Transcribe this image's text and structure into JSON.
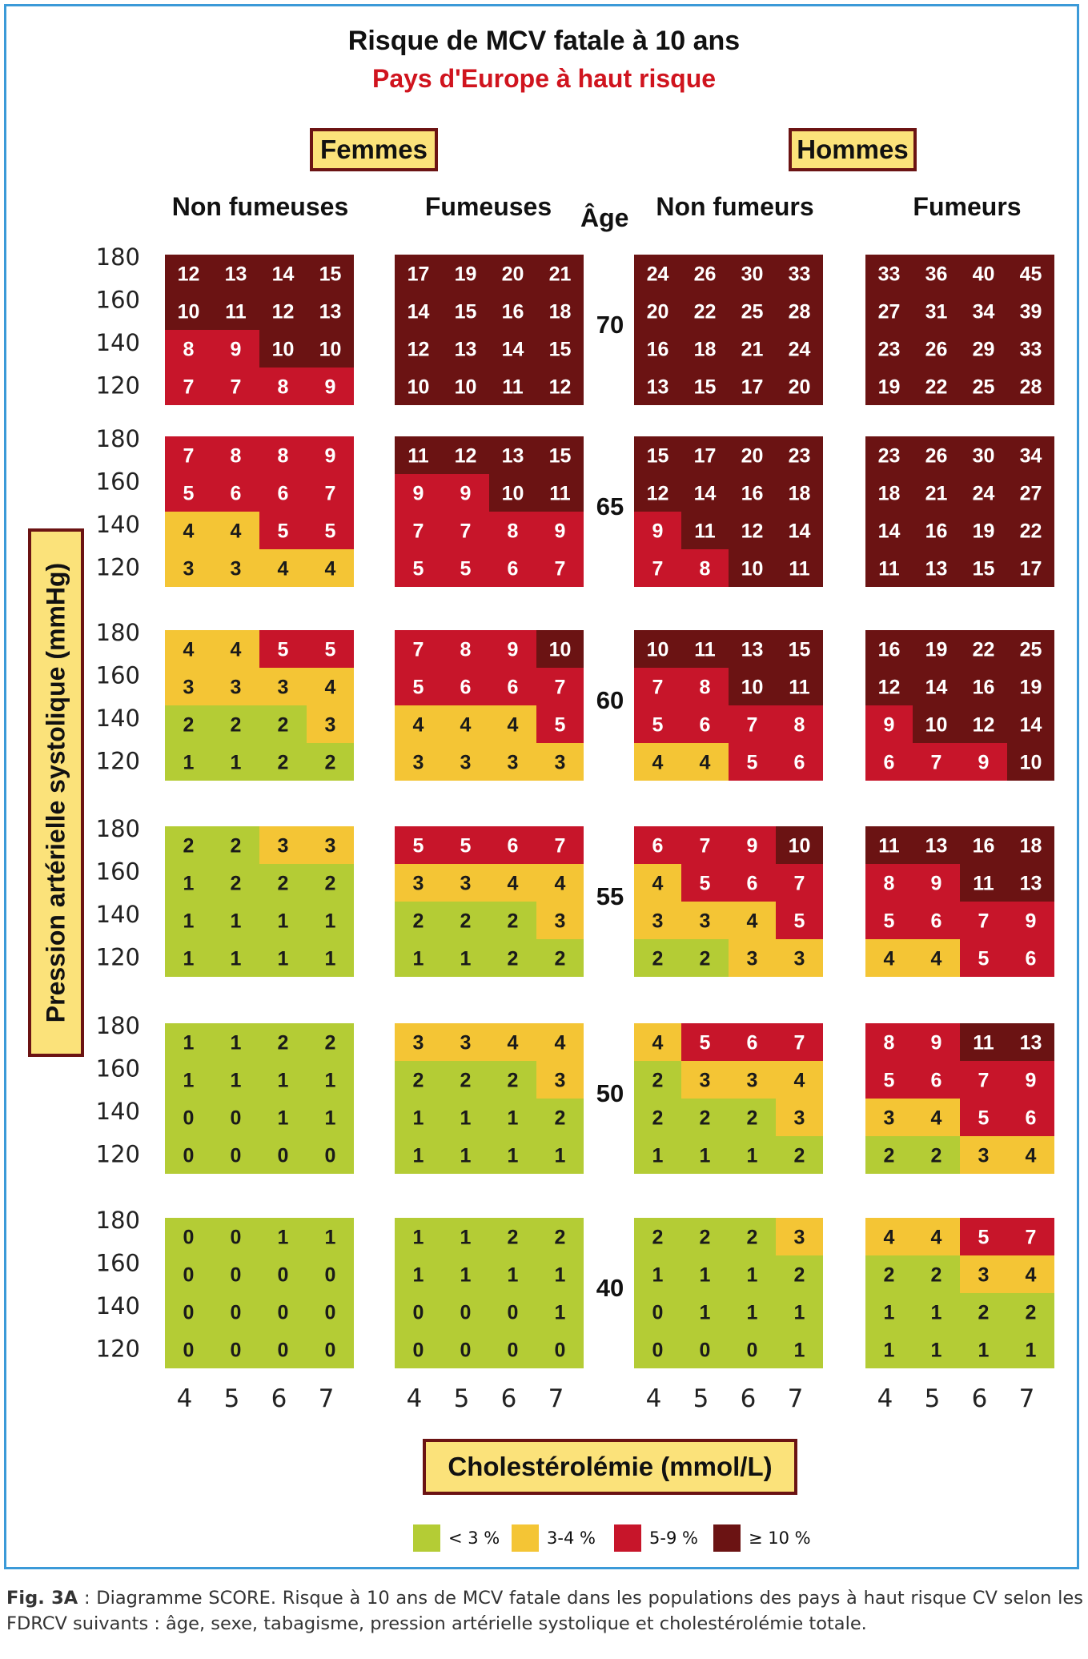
{
  "title": "Risque de MCV fatale à 10 ans",
  "subtitle": "Pays d'Europe à haut risque",
  "groups": {
    "femmes": "Femmes",
    "hommes": "Hommes"
  },
  "headers": {
    "femmes_non": "Non fumeuses",
    "femmes_fum": "Fumeuses",
    "age": "Âge",
    "hommes_non": "Non fumeurs",
    "hommes_fum": "Fumeurs"
  },
  "ylabel": "Pression artérielle systolique (mmHg)",
  "xlabel": "Cholestérolémie (mmol/L)",
  "legend": [
    {
      "label": "< 3 %",
      "color": "#b4cc35"
    },
    {
      "label": "3-4 %",
      "color": "#f4c535"
    },
    {
      "label": "5-9 %",
      "color": "#c7152a"
    },
    {
      "label": "≥ 10 %",
      "color": "#6b1313"
    }
  ],
  "caption": {
    "head": "Fig. 3A",
    "text": " : Diagramme SCORE. Risque à 10 ans de MCV fatale dans les populations des pays à haut risque CV selon les FDRCV suivants : âge, sexe, tabagisme, pression artérielle systolique et cholestérolémie totale."
  },
  "chart_data": {
    "type": "heatmap",
    "title": "Risque de MCV fatale à 10 ans",
    "subtitle": "Pays d'Europe à haut risque",
    "xlabel": "Cholestérolémie (mmol/L)",
    "ylabel": "Pression artérielle systolique (mmHg)",
    "cholesterol": [
      "4",
      "5",
      "6",
      "7"
    ],
    "systolic": [
      "180",
      "160",
      "140",
      "120"
    ],
    "ages": [
      "70",
      "65",
      "60",
      "55",
      "50",
      "40"
    ],
    "columns": [
      "Non fumeuses",
      "Fumeuses",
      "Non fumeurs",
      "Fumeurs"
    ],
    "values": {
      "70": [
        [
          [
            12,
            13,
            14,
            15
          ],
          [
            10,
            11,
            12,
            13
          ],
          [
            8,
            9,
            10,
            10
          ],
          [
            7,
            7,
            8,
            9
          ]
        ],
        [
          [
            17,
            19,
            20,
            21
          ],
          [
            14,
            15,
            16,
            18
          ],
          [
            12,
            13,
            14,
            15
          ],
          [
            10,
            10,
            11,
            12
          ]
        ],
        [
          [
            24,
            26,
            30,
            33
          ],
          [
            20,
            22,
            25,
            28
          ],
          [
            16,
            18,
            21,
            24
          ],
          [
            13,
            15,
            17,
            20
          ]
        ],
        [
          [
            33,
            36,
            40,
            45
          ],
          [
            27,
            31,
            34,
            39
          ],
          [
            23,
            26,
            29,
            33
          ],
          [
            19,
            22,
            25,
            28
          ]
        ]
      ],
      "65": [
        [
          [
            7,
            8,
            8,
            9
          ],
          [
            5,
            6,
            6,
            7
          ],
          [
            4,
            4,
            5,
            5
          ],
          [
            3,
            3,
            4,
            4
          ]
        ],
        [
          [
            11,
            12,
            13,
            15
          ],
          [
            9,
            9,
            10,
            11
          ],
          [
            7,
            7,
            8,
            9
          ],
          [
            5,
            5,
            6,
            7
          ]
        ],
        [
          [
            15,
            17,
            20,
            23
          ],
          [
            12,
            14,
            16,
            18
          ],
          [
            9,
            11,
            12,
            14
          ],
          [
            7,
            8,
            10,
            11
          ]
        ],
        [
          [
            23,
            26,
            30,
            34
          ],
          [
            18,
            21,
            24,
            27
          ],
          [
            14,
            16,
            19,
            22
          ],
          [
            11,
            13,
            15,
            17
          ]
        ]
      ],
      "60": [
        [
          [
            4,
            4,
            5,
            5
          ],
          [
            3,
            3,
            3,
            4
          ],
          [
            2,
            2,
            2,
            3
          ],
          [
            1,
            1,
            2,
            2
          ]
        ],
        [
          [
            7,
            8,
            9,
            10
          ],
          [
            5,
            6,
            6,
            7
          ],
          [
            4,
            4,
            4,
            5
          ],
          [
            3,
            3,
            3,
            3
          ]
        ],
        [
          [
            10,
            11,
            13,
            15
          ],
          [
            7,
            8,
            10,
            11
          ],
          [
            5,
            6,
            7,
            8
          ],
          [
            4,
            4,
            5,
            6
          ]
        ],
        [
          [
            16,
            19,
            22,
            25
          ],
          [
            12,
            14,
            16,
            19
          ],
          [
            9,
            10,
            12,
            14
          ],
          [
            6,
            7,
            9,
            10
          ]
        ]
      ],
      "55": [
        [
          [
            2,
            2,
            3,
            3
          ],
          [
            1,
            2,
            2,
            2
          ],
          [
            1,
            1,
            1,
            1
          ],
          [
            1,
            1,
            1,
            1
          ]
        ],
        [
          [
            5,
            5,
            6,
            7
          ],
          [
            3,
            3,
            4,
            4
          ],
          [
            2,
            2,
            2,
            3
          ],
          [
            1,
            1,
            2,
            2
          ]
        ],
        [
          [
            6,
            7,
            9,
            10
          ],
          [
            4,
            5,
            6,
            7
          ],
          [
            3,
            3,
            4,
            5
          ],
          [
            2,
            2,
            3,
            3
          ]
        ],
        [
          [
            11,
            13,
            16,
            18
          ],
          [
            8,
            9,
            11,
            13
          ],
          [
            5,
            6,
            7,
            9
          ],
          [
            4,
            4,
            5,
            6
          ]
        ]
      ],
      "50": [
        [
          [
            1,
            1,
            2,
            2
          ],
          [
            1,
            1,
            1,
            1
          ],
          [
            0,
            0,
            1,
            1
          ],
          [
            0,
            0,
            0,
            0
          ]
        ],
        [
          [
            3,
            3,
            4,
            4
          ],
          [
            2,
            2,
            2,
            3
          ],
          [
            1,
            1,
            1,
            2
          ],
          [
            1,
            1,
            1,
            1
          ]
        ],
        [
          [
            4,
            5,
            6,
            7
          ],
          [
            2,
            3,
            3,
            4
          ],
          [
            2,
            2,
            2,
            3
          ],
          [
            1,
            1,
            1,
            2
          ]
        ],
        [
          [
            8,
            9,
            11,
            13
          ],
          [
            5,
            6,
            7,
            9
          ],
          [
            3,
            4,
            5,
            6
          ],
          [
            2,
            2,
            3,
            4
          ]
        ]
      ],
      "40": [
        [
          [
            0,
            0,
            1,
            1
          ],
          [
            0,
            0,
            0,
            0
          ],
          [
            0,
            0,
            0,
            0
          ],
          [
            0,
            0,
            0,
            0
          ]
        ],
        [
          [
            1,
            1,
            2,
            2
          ],
          [
            1,
            1,
            1,
            1
          ],
          [
            0,
            0,
            0,
            1
          ],
          [
            0,
            0,
            0,
            0
          ]
        ],
        [
          [
            2,
            2,
            2,
            3
          ],
          [
            1,
            1,
            1,
            2
          ],
          [
            0,
            1,
            1,
            1
          ],
          [
            0,
            0,
            0,
            1
          ]
        ],
        [
          [
            4,
            4,
            5,
            7
          ],
          [
            2,
            2,
            3,
            4
          ],
          [
            1,
            1,
            2,
            2
          ],
          [
            1,
            1,
            1,
            1
          ]
        ]
      ]
    },
    "color_scale": [
      {
        "max": 2,
        "color": "#b4cc35"
      },
      {
        "max": 4,
        "color": "#f4c535"
      },
      {
        "max": 9,
        "color": "#c7152a"
      },
      {
        "max": 999,
        "color": "#6b1313"
      }
    ]
  }
}
